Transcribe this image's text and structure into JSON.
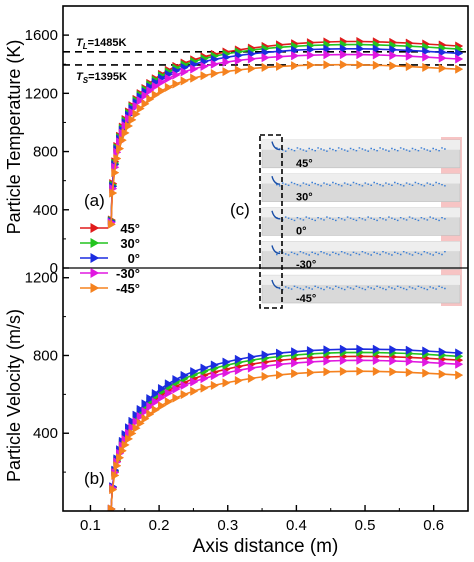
{
  "chart_data": [
    {
      "panel_label": "(a)",
      "type": "line",
      "ylabel": "Particle Temperature (K)",
      "xlabel": "Axis distance (m)",
      "xlim": [
        0.06,
        0.65
      ],
      "ylim": [
        0,
        1800
      ],
      "xticks": [
        0.1,
        0.2,
        0.3,
        0.4,
        0.5,
        0.6
      ],
      "yticks": [
        0,
        400,
        800,
        1200,
        1600
      ],
      "reference_lines": [
        {
          "label_sym": "T",
          "label_sub": "L",
          "label_rest": "=1485K",
          "y": 1485
        },
        {
          "label_sym": "T",
          "label_sub": "S",
          "label_rest": "=1395K",
          "y": 1395
        }
      ],
      "x": [
        0.13,
        0.132,
        0.135,
        0.138,
        0.142,
        0.146,
        0.15,
        0.155,
        0.16,
        0.166,
        0.172,
        0.179,
        0.186,
        0.194,
        0.203,
        0.213,
        0.224,
        0.236,
        0.25,
        0.265,
        0.28,
        0.297,
        0.315,
        0.334,
        0.354,
        0.375,
        0.397,
        0.42,
        0.444,
        0.468,
        0.492,
        0.516,
        0.54,
        0.564,
        0.588,
        0.612,
        0.636
      ],
      "series": [
        {
          "name": "45°",
          "color": "#e01b1b",
          "values": [
            330,
            580,
            730,
            835,
            905,
            968,
            1020,
            1072,
            1115,
            1158,
            1198,
            1233,
            1268,
            1300,
            1330,
            1358,
            1385,
            1408,
            1430,
            1451,
            1468,
            1484,
            1498,
            1511,
            1522,
            1533,
            1541,
            1548,
            1553,
            1556,
            1556,
            1554,
            1550,
            1545,
            1539,
            1532,
            1525
          ]
        },
        {
          "name": "30°",
          "color": "#22c41e",
          "values": [
            325,
            570,
            720,
            825,
            896,
            958,
            1010,
            1062,
            1106,
            1149,
            1189,
            1224,
            1259,
            1290,
            1320,
            1347,
            1373,
            1396,
            1418,
            1438,
            1455,
            1470,
            1484,
            1496,
            1507,
            1516,
            1523,
            1529,
            1533,
            1535,
            1535,
            1533,
            1529,
            1524,
            1518,
            1511,
            1504
          ]
        },
        {
          "name": "0°",
          "color": "#1c2ce0",
          "values": [
            320,
            560,
            710,
            815,
            885,
            946,
            998,
            1049,
            1093,
            1136,
            1175,
            1210,
            1244,
            1275,
            1304,
            1330,
            1355,
            1377,
            1398,
            1417,
            1433,
            1447,
            1460,
            1471,
            1481,
            1489,
            1496,
            1501,
            1504,
            1506,
            1506,
            1504,
            1500,
            1495,
            1489,
            1482,
            1475
          ]
        },
        {
          "name": "-30°",
          "color": "#e018e0",
          "values": [
            312,
            545,
            692,
            795,
            866,
            926,
            977,
            1027,
            1070,
            1112,
            1150,
            1185,
            1218,
            1248,
            1276,
            1302,
            1326,
            1347,
            1367,
            1385,
            1400,
            1414,
            1426,
            1436,
            1445,
            1452,
            1458,
            1462,
            1465,
            1466,
            1466,
            1464,
            1460,
            1455,
            1449,
            1442,
            1436
          ]
        },
        {
          "name": "-45°",
          "color": "#f5821f",
          "values": [
            300,
            515,
            655,
            752,
            820,
            878,
            928,
            976,
            1018,
            1058,
            1095,
            1128,
            1160,
            1189,
            1216,
            1241,
            1264,
            1285,
            1304,
            1321,
            1336,
            1349,
            1360,
            1370,
            1378,
            1385,
            1390,
            1394,
            1396,
            1397,
            1396,
            1393,
            1389,
            1384,
            1378,
            1372,
            1366
          ]
        }
      ]
    },
    {
      "panel_label": "(b)",
      "type": "line",
      "ylabel": "Particle Velocity (m/s)",
      "xlabel": "Axis distance (m)",
      "xlim": [
        0.06,
        0.65
      ],
      "ylim": [
        0,
        1250
      ],
      "xticks": [
        0.1,
        0.2,
        0.3,
        0.4,
        0.5,
        0.6
      ],
      "yticks": [
        400,
        800,
        1200
      ],
      "x": [
        0.13,
        0.132,
        0.135,
        0.138,
        0.142,
        0.146,
        0.15,
        0.155,
        0.16,
        0.166,
        0.172,
        0.179,
        0.186,
        0.194,
        0.203,
        0.213,
        0.224,
        0.236,
        0.25,
        0.265,
        0.28,
        0.297,
        0.315,
        0.334,
        0.354,
        0.375,
        0.397,
        0.42,
        0.444,
        0.468,
        0.492,
        0.516,
        0.54,
        0.564,
        0.588,
        0.612,
        0.636
      ],
      "series": [
        {
          "name": "45°",
          "color": "#e01b1b",
          "values": [
            10,
            120,
            200,
            255,
            300,
            340,
            372,
            405,
            435,
            465,
            492,
            520,
            545,
            570,
            595,
            618,
            640,
            660,
            680,
            698,
            714,
            729,
            743,
            755,
            766,
            775,
            782,
            788,
            792,
            795,
            796,
            795,
            793,
            790,
            786,
            781,
            776
          ]
        },
        {
          "name": "30°",
          "color": "#22c41e",
          "values": [
            10,
            122,
            205,
            262,
            308,
            350,
            384,
            418,
            450,
            481,
            509,
            537,
            563,
            589,
            614,
            637,
            659,
            680,
            700,
            718,
            734,
            749,
            763,
            775,
            786,
            795,
            802,
            808,
            812,
            815,
            816,
            815,
            813,
            810,
            806,
            801,
            796
          ]
        },
        {
          "name": "0°",
          "color": "#1c2ce0",
          "values": [
            10,
            125,
            210,
            268,
            315,
            358,
            393,
            428,
            461,
            493,
            522,
            551,
            578,
            604,
            630,
            654,
            676,
            697,
            717,
            735,
            751,
            766,
            780,
            792,
            803,
            812,
            819,
            825,
            829,
            832,
            833,
            832,
            830,
            827,
            823,
            818,
            813
          ]
        },
        {
          "name": "-30°",
          "color": "#e018e0",
          "values": [
            10,
            118,
            198,
            252,
            296,
            335,
            367,
            400,
            430,
            459,
            486,
            512,
            537,
            561,
            584,
            606,
            627,
            646,
            664,
            681,
            696,
            710,
            723,
            735,
            745,
            754,
            761,
            767,
            771,
            774,
            775,
            774,
            772,
            769,
            765,
            760,
            755
          ]
        },
        {
          "name": "-45°",
          "color": "#f5821f",
          "values": [
            10,
            110,
            183,
            233,
            274,
            310,
            340,
            371,
            399,
            426,
            451,
            475,
            498,
            520,
            541,
            562,
            581,
            599,
            616,
            632,
            646,
            659,
            671,
            682,
            692,
            700,
            707,
            712,
            716,
            718,
            719,
            718,
            716,
            713,
            709,
            704,
            699
          ]
        }
      ]
    }
  ],
  "inset": {
    "panel_label": "(c)",
    "angle_labels": [
      "45°",
      "30°",
      "0°",
      "-30°",
      "-45°"
    ]
  }
}
